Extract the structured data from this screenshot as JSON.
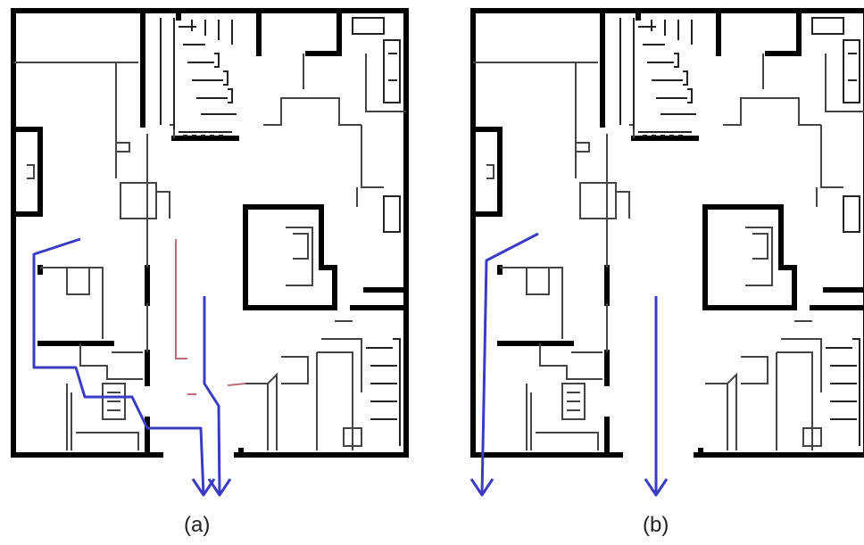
{
  "panels": [
    {
      "id": "a",
      "label": "(a)"
    },
    {
      "id": "b",
      "label": "(b)"
    }
  ],
  "colors": {
    "walls": "#000000",
    "thin_walls": "#555555",
    "path": "#3b3bc4",
    "constraint": "#c06a7a"
  }
}
